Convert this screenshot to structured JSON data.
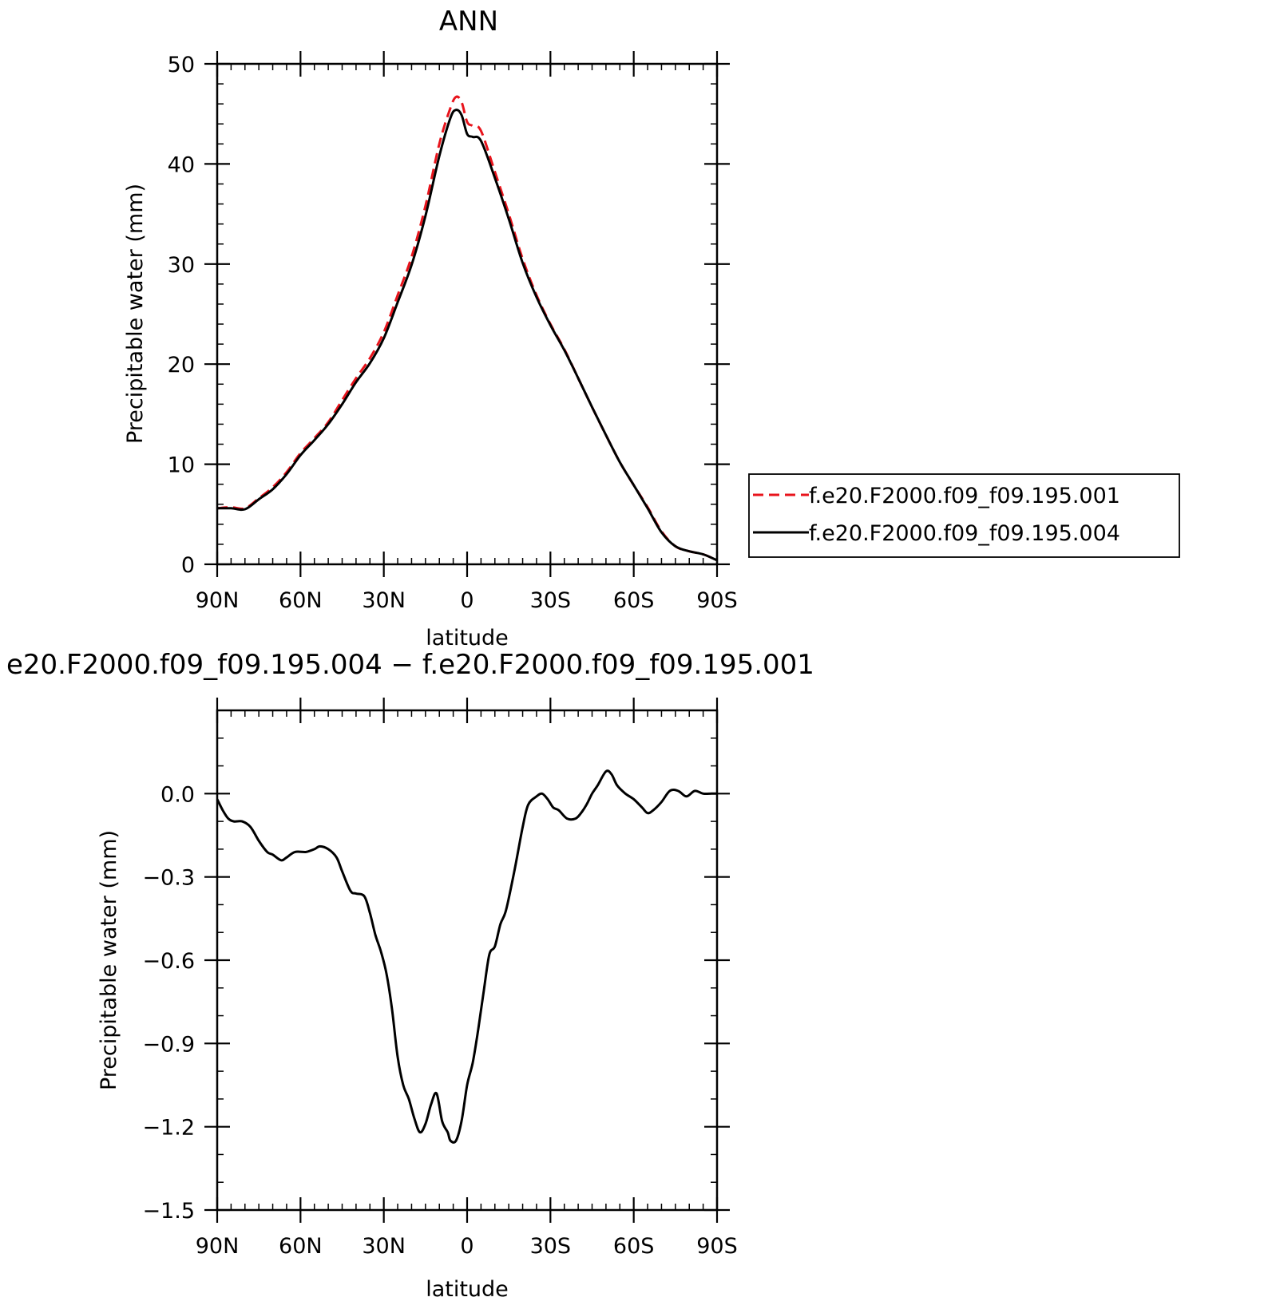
{
  "chart_data": [
    {
      "type": "line",
      "title": "ANN",
      "xlabel": "latitude",
      "ylabel": "Precipitable water (mm)",
      "xlim": [
        90,
        -90
      ],
      "ylim": [
        0,
        50
      ],
      "x_ticks": [
        {
          "value": 90,
          "label": "90N"
        },
        {
          "value": 60,
          "label": "60N"
        },
        {
          "value": 30,
          "label": "30N"
        },
        {
          "value": 0,
          "label": "0"
        },
        {
          "value": -30,
          "label": "30S"
        },
        {
          "value": -60,
          "label": "60S"
        },
        {
          "value": -90,
          "label": "90S"
        }
      ],
      "y_ticks": [
        {
          "value": 0,
          "label": "0"
        },
        {
          "value": 10,
          "label": "10"
        },
        {
          "value": 20,
          "label": "20"
        },
        {
          "value": 30,
          "label": "30"
        },
        {
          "value": 40,
          "label": "40"
        },
        {
          "value": 50,
          "label": "50"
        }
      ],
      "legend_position": "right",
      "series": [
        {
          "name": "f.e20.F2000.f09_f09.195.001",
          "color": "#e8141c",
          "style": "dashed",
          "x": [
            90,
            85,
            80,
            75,
            70,
            65,
            60,
            55,
            50,
            45,
            40,
            35,
            30,
            25,
            20,
            15,
            10,
            6,
            4,
            2,
            0,
            -2,
            -5,
            -10,
            -15,
            -20,
            -25,
            -30,
            -35,
            -40,
            -45,
            -50,
            -55,
            -60,
            -65,
            -70,
            -75,
            -80,
            -85,
            -90
          ],
          "y": [
            5.6,
            5.7,
            5.6,
            6.6,
            7.7,
            9.2,
            11.1,
            12.6,
            14.2,
            16.4,
            18.6,
            20.6,
            23.2,
            26.9,
            30.7,
            35.8,
            42.0,
            45.6,
            46.7,
            46.2,
            44.2,
            43.8,
            43.3,
            39.2,
            35.0,
            30.5,
            26.9,
            24.0,
            21.5,
            18.6,
            15.7,
            12.9,
            10.2,
            7.9,
            5.7,
            3.3,
            1.8,
            1.3,
            1.0,
            0.4
          ]
        },
        {
          "name": "f.e20.F2000.f09_f09.195.004",
          "color": "#000000",
          "style": "solid",
          "x": [
            90,
            85,
            80,
            75,
            70,
            65,
            60,
            55,
            50,
            45,
            40,
            35,
            30,
            25,
            20,
            15,
            10,
            6,
            4,
            2,
            0,
            -2,
            -5,
            -10,
            -15,
            -20,
            -25,
            -30,
            -35,
            -40,
            -45,
            -50,
            -55,
            -60,
            -65,
            -70,
            -75,
            -80,
            -85,
            -90
          ],
          "y": [
            5.6,
            5.6,
            5.5,
            6.5,
            7.5,
            9.0,
            10.9,
            12.4,
            14.0,
            16.0,
            18.2,
            20.1,
            22.6,
            26.2,
            29.9,
            34.8,
            40.8,
            44.6,
            45.4,
            44.9,
            43.0,
            42.7,
            42.3,
            38.6,
            34.5,
            30.1,
            26.7,
            23.9,
            21.4,
            18.6,
            15.7,
            12.9,
            10.2,
            7.9,
            5.6,
            3.2,
            1.8,
            1.3,
            1.0,
            0.4
          ]
        }
      ]
    },
    {
      "type": "line",
      "title": "e20.F2000.f09_f09.195.004 − f.e20.F2000.f09_f09.195.001",
      "xlabel": "latitude",
      "ylabel": "Precipitable water (mm)",
      "xlim": [
        90,
        -90
      ],
      "ylim": [
        -1.5,
        0.3
      ],
      "x_ticks": [
        {
          "value": 90,
          "label": "90N"
        },
        {
          "value": 60,
          "label": "60N"
        },
        {
          "value": 30,
          "label": "30N"
        },
        {
          "value": 0,
          "label": "0"
        },
        {
          "value": -30,
          "label": "30S"
        },
        {
          "value": -60,
          "label": "60S"
        },
        {
          "value": -90,
          "label": "90S"
        }
      ],
      "y_ticks": [
        {
          "value": 0.0,
          "label": "0.0"
        },
        {
          "value": -0.3,
          "label": "−0.3"
        },
        {
          "value": -0.6,
          "label": "−0.6"
        },
        {
          "value": -0.9,
          "label": "−0.9"
        },
        {
          "value": -1.2,
          "label": "−1.2"
        },
        {
          "value": -1.5,
          "label": "−1.5"
        }
      ],
      "series": [
        {
          "color": "#000000",
          "style": "solid",
          "x": [
            90,
            88,
            86,
            84,
            81,
            78,
            75,
            72,
            70,
            67,
            65,
            62,
            58,
            55,
            53,
            50,
            47,
            45,
            42,
            40,
            37,
            35,
            33,
            31,
            29,
            27,
            25,
            23,
            21,
            19,
            17,
            15,
            13,
            11,
            9,
            7,
            6,
            4,
            2,
            0,
            -2,
            -4,
            -6,
            -8,
            -10,
            -12,
            -14,
            -17,
            -20,
            -22,
            -25,
            -27,
            -29,
            -31,
            -33,
            -36,
            -39,
            -41,
            -43,
            -45,
            -47,
            -50,
            -52,
            -54,
            -57,
            -60,
            -63,
            -65,
            -67,
            -70,
            -73,
            -76,
            -79,
            -82,
            -85,
            -88,
            -90
          ],
          "y": [
            -0.02,
            -0.06,
            -0.09,
            -0.1,
            -0.1,
            -0.12,
            -0.17,
            -0.21,
            -0.22,
            -0.24,
            -0.23,
            -0.21,
            -0.21,
            -0.2,
            -0.19,
            -0.2,
            -0.23,
            -0.28,
            -0.35,
            -0.36,
            -0.37,
            -0.43,
            -0.51,
            -0.57,
            -0.65,
            -0.78,
            -0.95,
            -1.05,
            -1.1,
            -1.17,
            -1.22,
            -1.19,
            -1.12,
            -1.08,
            -1.18,
            -1.22,
            -1.25,
            -1.25,
            -1.18,
            -1.05,
            -0.97,
            -0.85,
            -0.71,
            -0.58,
            -0.55,
            -0.47,
            -0.42,
            -0.28,
            -0.12,
            -0.04,
            -0.01,
            0.0,
            -0.02,
            -0.05,
            -0.06,
            -0.09,
            -0.09,
            -0.07,
            -0.04,
            0.0,
            0.03,
            0.08,
            0.07,
            0.03,
            0.0,
            -0.02,
            -0.05,
            -0.07,
            -0.06,
            -0.03,
            0.01,
            0.01,
            -0.01,
            0.01,
            0.0,
            0.0,
            0.0
          ]
        }
      ]
    }
  ]
}
